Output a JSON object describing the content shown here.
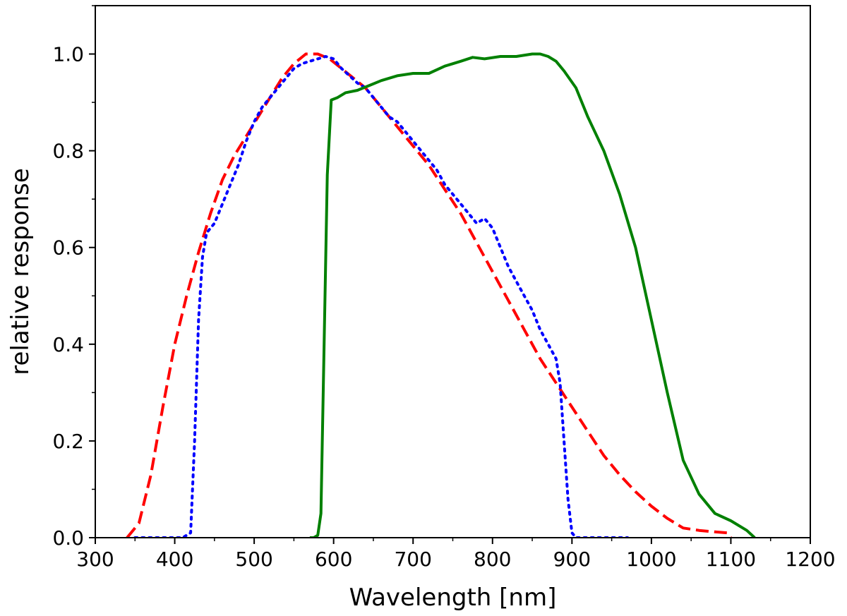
{
  "chart_data": {
    "type": "line",
    "title": "",
    "xlabel": "Wavelength [nm]",
    "ylabel": "relative response",
    "xlim": [
      300,
      1200
    ],
    "ylim": [
      0.0,
      1.1
    ],
    "xticks": [
      300,
      400,
      500,
      600,
      700,
      800,
      900,
      1000,
      1100,
      1200
    ],
    "xtick_labels": [
      "300",
      "400",
      "500",
      "600",
      "700",
      "800",
      "900",
      "1000",
      "1100",
      "1200"
    ],
    "yticks": [
      0.0,
      0.2,
      0.4,
      0.6,
      0.8,
      1.0
    ],
    "ytick_labels": [
      "0.0",
      "0.2",
      "0.4",
      "0.6",
      "0.8",
      "1.0"
    ],
    "grid": false,
    "series": [
      {
        "name": "red dashed curve",
        "color": "#ff0000",
        "linestyle": "dashed",
        "x": [
          340,
          355,
          370,
          385,
          400,
          415,
          430,
          445,
          460,
          475,
          490,
          505,
          520,
          535,
          550,
          565,
          580,
          595,
          610,
          625,
          640,
          660,
          680,
          700,
          720,
          740,
          760,
          780,
          800,
          820,
          840,
          860,
          880,
          900,
          920,
          940,
          960,
          980,
          1000,
          1020,
          1040,
          1060,
          1080,
          1095,
          1100
        ],
        "y": [
          0.0,
          0.03,
          0.13,
          0.27,
          0.4,
          0.5,
          0.59,
          0.67,
          0.74,
          0.79,
          0.83,
          0.87,
          0.91,
          0.95,
          0.98,
          1.0,
          1.0,
          0.99,
          0.97,
          0.95,
          0.93,
          0.89,
          0.85,
          0.81,
          0.77,
          0.72,
          0.67,
          0.61,
          0.55,
          0.49,
          0.43,
          0.37,
          0.32,
          0.27,
          0.22,
          0.17,
          0.13,
          0.095,
          0.065,
          0.04,
          0.02,
          0.015,
          0.012,
          0.01,
          0.0
        ]
      },
      {
        "name": "blue dotted curve",
        "color": "#0000ff",
        "linestyle": "dotted",
        "x": [
          350,
          380,
          410,
          420,
          425,
          430,
          435,
          440,
          450,
          460,
          470,
          480,
          490,
          500,
          510,
          520,
          530,
          540,
          550,
          560,
          570,
          580,
          590,
          600,
          610,
          620,
          630,
          640,
          650,
          660,
          670,
          680,
          690,
          700,
          710,
          720,
          730,
          740,
          750,
          760,
          770,
          780,
          790,
          800,
          810,
          820,
          830,
          840,
          850,
          860,
          870,
          880,
          885,
          890,
          895,
          900,
          905,
          910,
          920,
          940,
          960,
          970
        ],
        "y": [
          0.0,
          0.0,
          0.0,
          0.01,
          0.2,
          0.45,
          0.58,
          0.63,
          0.65,
          0.69,
          0.73,
          0.77,
          0.82,
          0.86,
          0.89,
          0.91,
          0.93,
          0.95,
          0.97,
          0.98,
          0.985,
          0.99,
          0.995,
          0.99,
          0.97,
          0.955,
          0.94,
          0.93,
          0.91,
          0.89,
          0.87,
          0.86,
          0.84,
          0.82,
          0.8,
          0.78,
          0.76,
          0.73,
          0.71,
          0.69,
          0.67,
          0.65,
          0.66,
          0.64,
          0.6,
          0.56,
          0.53,
          0.5,
          0.47,
          0.43,
          0.4,
          0.37,
          0.32,
          0.2,
          0.08,
          0.01,
          0.0,
          0.0,
          0.0,
          0.0,
          0.0,
          0.0
        ]
      },
      {
        "name": "green solid curve",
        "color": "#008000",
        "linestyle": "solid",
        "x": [
          570,
          575,
          580,
          584,
          588,
          592,
          597,
          605,
          615,
          630,
          645,
          660,
          680,
          700,
          720,
          740,
          760,
          775,
          790,
          810,
          830,
          850,
          860,
          870,
          880,
          890,
          905,
          920,
          940,
          960,
          980,
          1000,
          1020,
          1040,
          1060,
          1080,
          1100,
          1120,
          1130
        ],
        "y": [
          0.0,
          0.0,
          0.005,
          0.05,
          0.4,
          0.75,
          0.905,
          0.91,
          0.92,
          0.925,
          0.935,
          0.945,
          0.955,
          0.96,
          0.96,
          0.975,
          0.985,
          0.993,
          0.99,
          0.995,
          0.995,
          1.0,
          1.0,
          0.995,
          0.985,
          0.965,
          0.93,
          0.87,
          0.8,
          0.71,
          0.6,
          0.45,
          0.3,
          0.16,
          0.09,
          0.05,
          0.035,
          0.015,
          0.0
        ]
      }
    ]
  }
}
